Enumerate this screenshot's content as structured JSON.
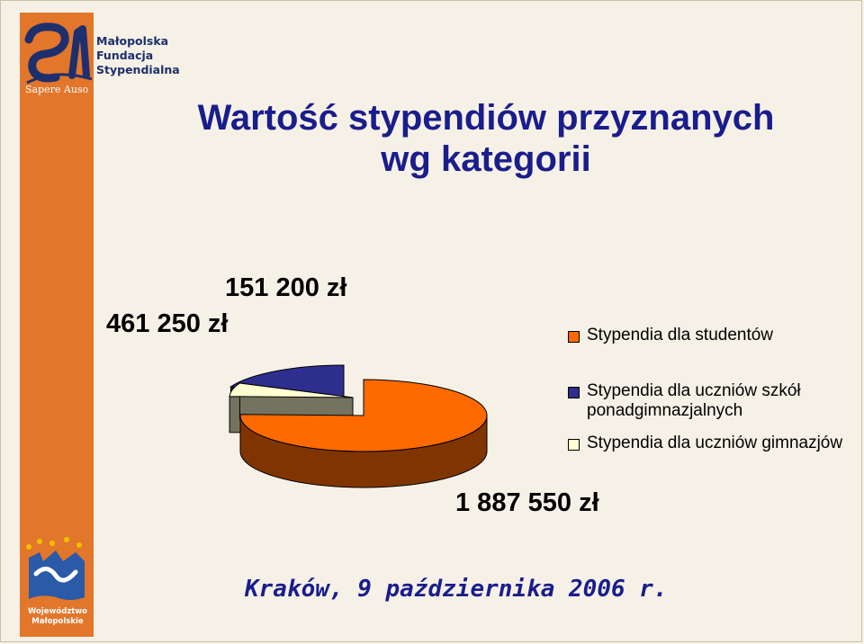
{
  "title": {
    "line1": "Wartość stypendiów przyznanych",
    "line2": "wg kategorii"
  },
  "logo": {
    "line1": "Małopolska",
    "line2": "Fundacja",
    "line3": "Stypendialna",
    "motto": "Sapere Auso"
  },
  "region_logo": {
    "line1": "Województwo",
    "line2": "Małopolskie"
  },
  "footer": "Kraków, 9 października 2006 r.",
  "colors": {
    "side_bar": "#e2762b",
    "title": "#1a1d8c",
    "studenci": "#ff6a00",
    "ponadgimnazjalne": "#2e2e8e",
    "gimnazja": "#ffffd2"
  },
  "chart_data": {
    "type": "pie",
    "style": "3d-exploded",
    "slices": [
      {
        "label": "Stypendia dla studentów",
        "value": 1887550,
        "value_label": "1 887 550 zł",
        "color": "#ff6a00"
      },
      {
        "label": "Stypendia dla uczniów szkół ponadgimnazjalnych",
        "value": 461250,
        "value_label": "461 250 zł",
        "color": "#2e2e8e"
      },
      {
        "label": "Stypendia dla uczniów gimnazjów",
        "value": 151200,
        "value_label": "151 200 zł",
        "color": "#ffffd2"
      }
    ],
    "legend_position": "right"
  }
}
